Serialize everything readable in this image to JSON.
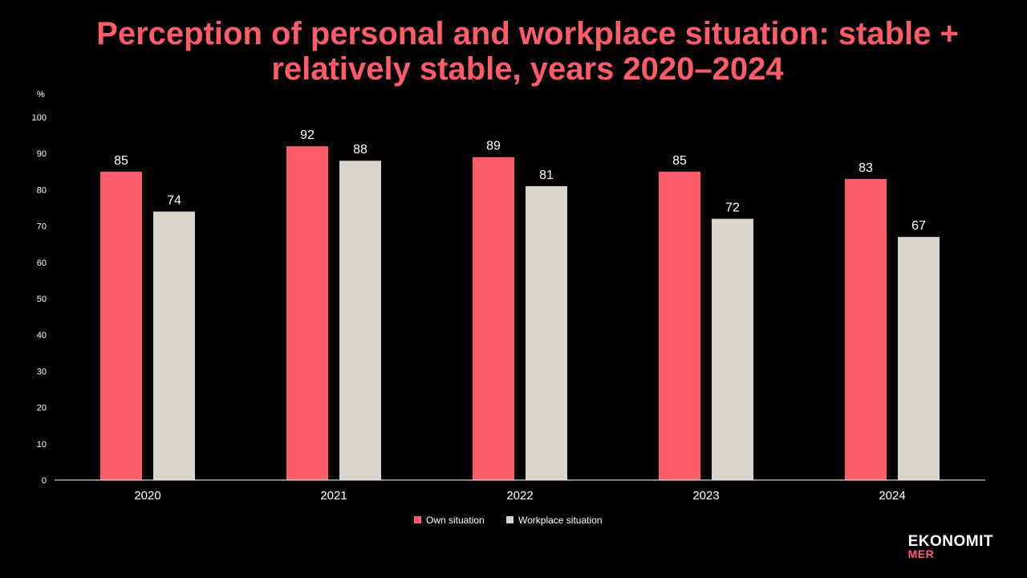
{
  "colors": {
    "background": "#000000",
    "title": "#FF5C6A",
    "series_own": "#FF5C6A",
    "series_workplace": "#D9D4CE",
    "text": "#FFFFFF"
  },
  "logo": {
    "line1": "EKONOMIT",
    "line2": "MER"
  },
  "chart_data": {
    "type": "bar",
    "title": "Perception of personal and workplace situation: stable + relatively stable, years 2020–2024",
    "ylabel": "%",
    "xlabel": "",
    "ylim": [
      0,
      100
    ],
    "yticks": [
      0,
      10,
      20,
      30,
      40,
      50,
      60,
      70,
      80,
      90,
      100
    ],
    "categories": [
      "2020",
      "2021",
      "2022",
      "2023",
      "2024"
    ],
    "series": [
      {
        "name": "Own situation",
        "values": [
          85,
          92,
          89,
          85,
          83
        ]
      },
      {
        "name": "Workplace situation",
        "values": [
          74,
          88,
          81,
          72,
          67
        ]
      }
    ],
    "grid": false,
    "legend_position": "bottom-center",
    "data_labels": true
  }
}
